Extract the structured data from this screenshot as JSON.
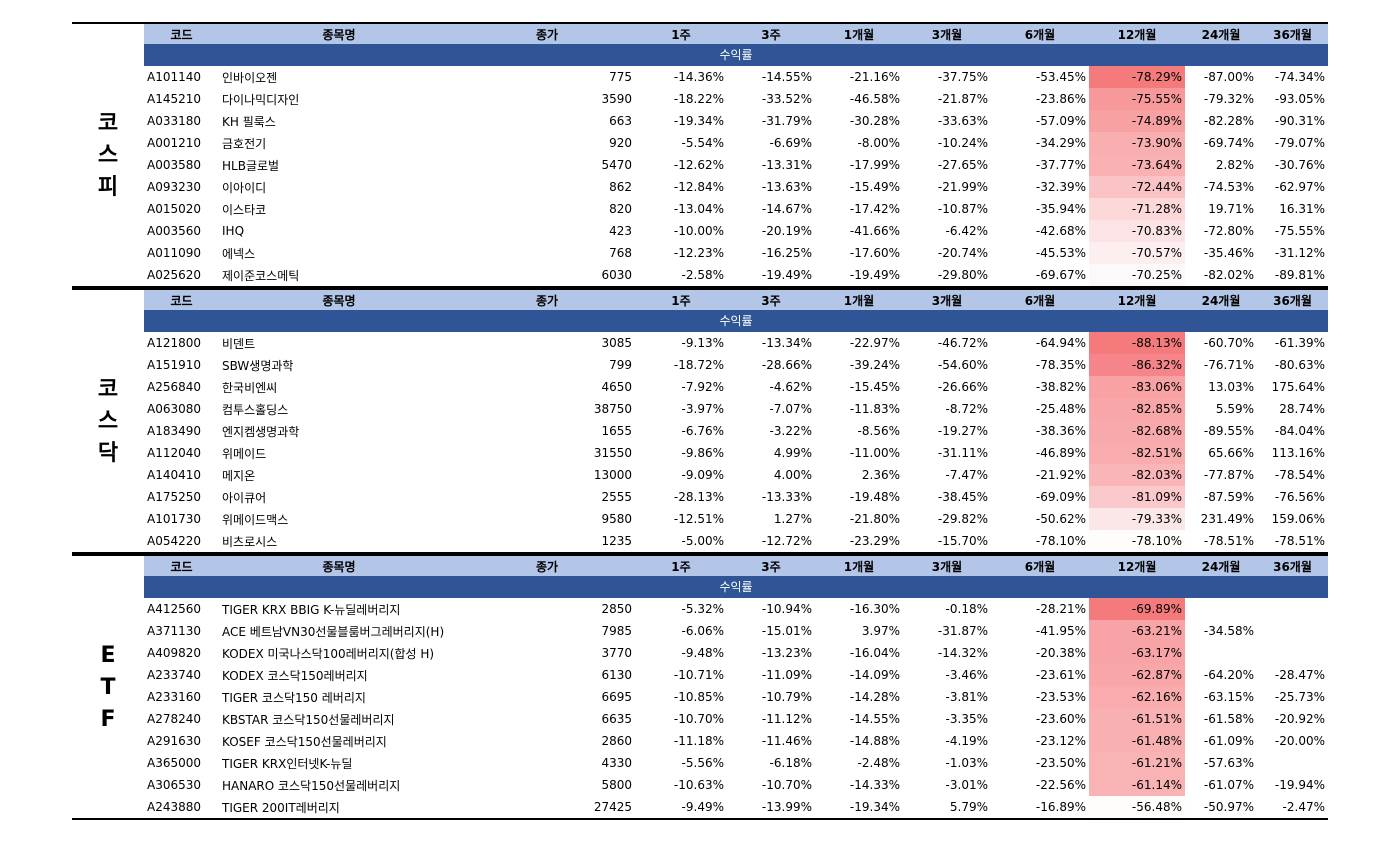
{
  "headers": [
    "코드",
    "종목명",
    "종가",
    "1주",
    "3주",
    "1개월",
    "3개월",
    "6개월",
    "12개월",
    "24개월",
    "36개월"
  ],
  "subheader": "수익률",
  "sections": [
    {
      "label": "코스피",
      "rows": [
        [
          "A101140",
          "인바이오젠",
          "775",
          "-14.36%",
          "-14.55%",
          "-21.16%",
          "-37.75%",
          "-53.45%",
          "-78.29%",
          "-87.00%",
          "-74.34%"
        ],
        [
          "A145210",
          "다이나믹디자인",
          "3590",
          "-18.22%",
          "-33.52%",
          "-46.58%",
          "-21.87%",
          "-23.86%",
          "-75.55%",
          "-79.32%",
          "-93.05%"
        ],
        [
          "A033180",
          "KH 필룩스",
          "663",
          "-19.34%",
          "-31.79%",
          "-30.28%",
          "-33.63%",
          "-57.09%",
          "-74.89%",
          "-82.28%",
          "-90.31%"
        ],
        [
          "A001210",
          "금호전기",
          "920",
          "-5.54%",
          "-6.69%",
          "-8.00%",
          "-10.24%",
          "-34.29%",
          "-73.90%",
          "-69.74%",
          "-79.07%"
        ],
        [
          "A003580",
          "HLB글로벌",
          "5470",
          "-12.62%",
          "-13.31%",
          "-17.99%",
          "-27.65%",
          "-37.77%",
          "-73.64%",
          "2.82%",
          "-30.76%"
        ],
        [
          "A093230",
          "이아이디",
          "862",
          "-12.84%",
          "-13.63%",
          "-15.49%",
          "-21.99%",
          "-32.39%",
          "-72.44%",
          "-74.53%",
          "-62.97%"
        ],
        [
          "A015020",
          "이스타코",
          "820",
          "-13.04%",
          "-14.67%",
          "-17.42%",
          "-10.87%",
          "-35.94%",
          "-71.28%",
          "19.71%",
          "16.31%"
        ],
        [
          "A003560",
          "IHQ",
          "423",
          "-10.00%",
          "-20.19%",
          "-41.66%",
          "-6.42%",
          "-42.68%",
          "-70.83%",
          "-72.80%",
          "-75.55%"
        ],
        [
          "A011090",
          "에넥스",
          "768",
          "-12.23%",
          "-16.25%",
          "-17.60%",
          "-20.74%",
          "-45.53%",
          "-70.57%",
          "-35.46%",
          "-31.12%"
        ],
        [
          "A025620",
          "제이준코스메틱",
          "6030",
          "-2.58%",
          "-19.49%",
          "-19.49%",
          "-29.80%",
          "-69.67%",
          "-70.25%",
          "-82.02%",
          "-89.81%"
        ]
      ],
      "heat_colors": [
        "#f47a7c",
        "#f7999b",
        "#f8a1a3",
        "#f9aeb0",
        "#f9b1b3",
        "#fac3c5",
        "#fcd8d9",
        "#fce4e6",
        "#fdeff0",
        "#fdf9fa"
      ]
    },
    {
      "label": "코스닥",
      "rows": [
        [
          "A121800",
          "비덴트",
          "3085",
          "-9.13%",
          "-13.34%",
          "-22.97%",
          "-46.72%",
          "-64.94%",
          "-88.13%",
          "-60.70%",
          "-61.39%"
        ],
        [
          "A151910",
          "SBW생명과학",
          "799",
          "-18.72%",
          "-28.66%",
          "-39.24%",
          "-54.60%",
          "-78.35%",
          "-86.32%",
          "-76.71%",
          "-80.63%"
        ],
        [
          "A256840",
          "한국비엔씨",
          "4650",
          "-7.92%",
          "-4.62%",
          "-15.45%",
          "-26.66%",
          "-38.82%",
          "-83.06%",
          "13.03%",
          "175.64%"
        ],
        [
          "A063080",
          "컴투스홀딩스",
          "38750",
          "-3.97%",
          "-7.07%",
          "-11.83%",
          "-8.72%",
          "-25.48%",
          "-82.85%",
          "5.59%",
          "28.74%"
        ],
        [
          "A183490",
          "엔지켐생명과학",
          "1655",
          "-6.76%",
          "-3.22%",
          "-8.56%",
          "-19.27%",
          "-38.36%",
          "-82.68%",
          "-89.55%",
          "-84.04%"
        ],
        [
          "A112040",
          "위메이드",
          "31550",
          "-9.86%",
          "4.99%",
          "-11.00%",
          "-31.11%",
          "-46.89%",
          "-82.51%",
          "65.66%",
          "113.16%"
        ],
        [
          "A140410",
          "메지온",
          "13000",
          "-9.09%",
          "4.00%",
          "2.36%",
          "-7.47%",
          "-21.92%",
          "-82.03%",
          "-77.87%",
          "-78.54%"
        ],
        [
          "A175250",
          "아이큐어",
          "2555",
          "-28.13%",
          "-13.33%",
          "-19.48%",
          "-38.45%",
          "-69.09%",
          "-81.09%",
          "-87.59%",
          "-76.56%"
        ],
        [
          "A101730",
          "위메이드맥스",
          "9580",
          "-12.51%",
          "1.27%",
          "-21.80%",
          "-29.82%",
          "-50.62%",
          "-79.33%",
          "231.49%",
          "159.06%"
        ],
        [
          "A054220",
          "비츠로시스",
          "1235",
          "-5.00%",
          "-12.72%",
          "-23.29%",
          "-15.70%",
          "-78.10%",
          "-78.10%",
          "-78.51%",
          "-78.51%"
        ]
      ],
      "heat_colors": [
        "#f47a7c",
        "#f5858a",
        "#f8a2a4",
        "#f8a6a8",
        "#f8a9ab",
        "#f9acae",
        "#f9b5b7",
        "#fbc9cb",
        "#fce7e8",
        "#fffcfc"
      ]
    },
    {
      "label": "ETF",
      "rows": [
        [
          "A412560",
          "TIGER KRX BBIG K-뉴딜레버리지",
          "2850",
          "-5.32%",
          "-10.94%",
          "-16.30%",
          "-0.18%",
          "-28.21%",
          "-69.89%",
          "",
          ""
        ],
        [
          "A371130",
          "ACE 베트남VN30선물블룸버그레버리지(H)",
          "7985",
          "-6.06%",
          "-15.01%",
          "3.97%",
          "-31.87%",
          "-41.95%",
          "-63.21%",
          "-34.58%",
          ""
        ],
        [
          "A409820",
          "KODEX 미국나스닥100레버리지(합성 H)",
          "3770",
          "-9.48%",
          "-13.23%",
          "-16.04%",
          "-14.32%",
          "-20.38%",
          "-63.17%",
          "",
          ""
        ],
        [
          "A233740",
          "KODEX 코스닥150레버리지",
          "6130",
          "-10.71%",
          "-11.09%",
          "-14.09%",
          "-3.46%",
          "-23.61%",
          "-62.87%",
          "-64.20%",
          "-28.47%"
        ],
        [
          "A233160",
          "TIGER 코스닥150 레버리지",
          "6695",
          "-10.85%",
          "-10.79%",
          "-14.28%",
          "-3.81%",
          "-23.53%",
          "-62.16%",
          "-63.15%",
          "-25.73%"
        ],
        [
          "A278240",
          "KBSTAR 코스닥150선물레버리지",
          "6635",
          "-10.70%",
          "-11.12%",
          "-14.55%",
          "-3.35%",
          "-23.60%",
          "-61.51%",
          "-61.58%",
          "-20.92%"
        ],
        [
          "A291630",
          "KOSEF 코스닥150선물레버리지",
          "2860",
          "-11.18%",
          "-11.46%",
          "-14.88%",
          "-4.19%",
          "-23.12%",
          "-61.48%",
          "-61.09%",
          "-20.00%"
        ],
        [
          "A365000",
          "TIGER KRX인터넷K-뉴딜",
          "4330",
          "-5.56%",
          "-6.18%",
          "-2.48%",
          "-1.03%",
          "-23.50%",
          "-61.21%",
          "-57.63%",
          ""
        ],
        [
          "A306530",
          "HANARO 코스닥150선물레버리지",
          "5800",
          "-10.63%",
          "-10.70%",
          "-14.33%",
          "-3.01%",
          "-22.56%",
          "-61.14%",
          "-61.07%",
          "-19.94%"
        ],
        [
          "A243880",
          "TIGER 200IT레버리지",
          "27425",
          "-9.49%",
          "-13.99%",
          "-19.34%",
          "5.79%",
          "-16.89%",
          "-56.48%",
          "-50.97%",
          "-2.47%"
        ]
      ],
      "heat_colors": [
        "#f47a7c",
        "#f8a3a5",
        "#f8a3a5",
        "#f8a6a8",
        "#f9abad",
        "#f9b0b2",
        "#f9b0b2",
        "#f9b3b5",
        "#f9b3b5",
        "#fffcfc"
      ]
    }
  ]
}
